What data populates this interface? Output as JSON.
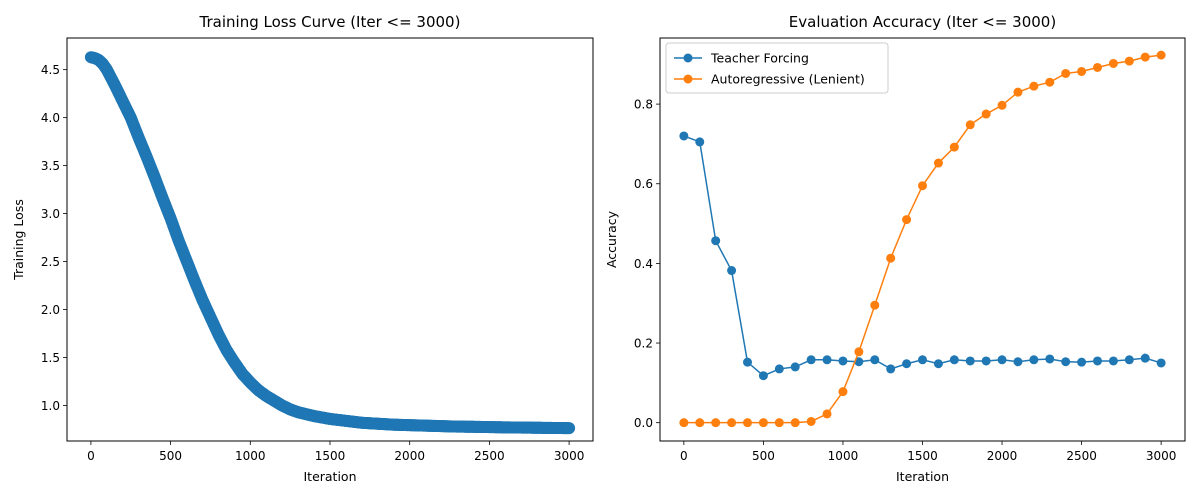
{
  "chart_data": [
    {
      "type": "scatter",
      "title": "Training Loss Curve (Iter <= 3000)",
      "xlabel": "Iteration",
      "ylabel": "Training Loss",
      "xlim": [
        -150,
        3150
      ],
      "ylim": [
        0.63,
        4.83
      ],
      "xticks": [
        0,
        500,
        1000,
        1500,
        2000,
        2500,
        3000
      ],
      "yticks": [
        1.0,
        1.5,
        2.0,
        2.5,
        3.0,
        3.5,
        4.0,
        4.5
      ],
      "ytick_format": 1,
      "grid": false,
      "series": [
        {
          "color": "#1f77b4",
          "x": [
            0,
            25,
            50,
            75,
            100,
            150,
            200,
            250,
            300,
            350,
            400,
            450,
            500,
            550,
            600,
            650,
            700,
            750,
            800,
            850,
            900,
            950,
            1000,
            1050,
            1100,
            1150,
            1200,
            1250,
            1300,
            1350,
            1400,
            1450,
            1500,
            1600,
            1700,
            1800,
            1900,
            2000,
            2100,
            2200,
            2300,
            2400,
            2500,
            2600,
            2700,
            2800,
            2900,
            3000
          ],
          "y": [
            4.63,
            4.62,
            4.6,
            4.56,
            4.5,
            4.34,
            4.17,
            4.0,
            3.79,
            3.59,
            3.38,
            3.16,
            2.95,
            2.72,
            2.51,
            2.3,
            2.1,
            1.92,
            1.74,
            1.58,
            1.45,
            1.33,
            1.24,
            1.16,
            1.1,
            1.05,
            1.0,
            0.96,
            0.93,
            0.91,
            0.89,
            0.875,
            0.86,
            0.84,
            0.82,
            0.81,
            0.8,
            0.795,
            0.79,
            0.785,
            0.78,
            0.778,
            0.775,
            0.772,
            0.77,
            0.768,
            0.766,
            0.764
          ]
        }
      ]
    },
    {
      "type": "line",
      "title": "Evaluation Accuracy (Iter <= 3000)",
      "xlabel": "Iteration",
      "ylabel": "Accuracy",
      "xlim": [
        -150,
        3150
      ],
      "ylim": [
        -0.046,
        0.966
      ],
      "xticks": [
        0,
        500,
        1000,
        1500,
        2000,
        2500,
        3000
      ],
      "yticks": [
        0.0,
        0.2,
        0.4,
        0.6,
        0.8
      ],
      "ytick_format": 1,
      "grid": false,
      "legend": "top-left",
      "x": [
        0,
        100,
        200,
        300,
        400,
        500,
        600,
        700,
        800,
        900,
        1000,
        1100,
        1200,
        1300,
        1400,
        1500,
        1600,
        1700,
        1800,
        1900,
        2000,
        2100,
        2200,
        2300,
        2400,
        2500,
        2600,
        2700,
        2800,
        2900,
        3000
      ],
      "series": [
        {
          "name": "Teacher Forcing",
          "color": "#1f77b4",
          "values": [
            0.72,
            0.705,
            0.457,
            0.382,
            0.152,
            0.118,
            0.135,
            0.14,
            0.158,
            0.158,
            0.155,
            0.153,
            0.158,
            0.135,
            0.148,
            0.158,
            0.148,
            0.158,
            0.155,
            0.155,
            0.158,
            0.153,
            0.158,
            0.16,
            0.153,
            0.152,
            0.155,
            0.155,
            0.158,
            0.162,
            0.15
          ]
        },
        {
          "name": "Autoregressive (Lenient)",
          "color": "#ff7f0e",
          "values": [
            0.0,
            0.0,
            0.0,
            0.0,
            0.0,
            0.0,
            0.0,
            0.0,
            0.003,
            0.022,
            0.078,
            0.178,
            0.295,
            0.413,
            0.51,
            0.595,
            0.652,
            0.692,
            0.748,
            0.775,
            0.797,
            0.83,
            0.845,
            0.855,
            0.877,
            0.882,
            0.892,
            0.902,
            0.908,
            0.918,
            0.923
          ]
        }
      ]
    }
  ]
}
